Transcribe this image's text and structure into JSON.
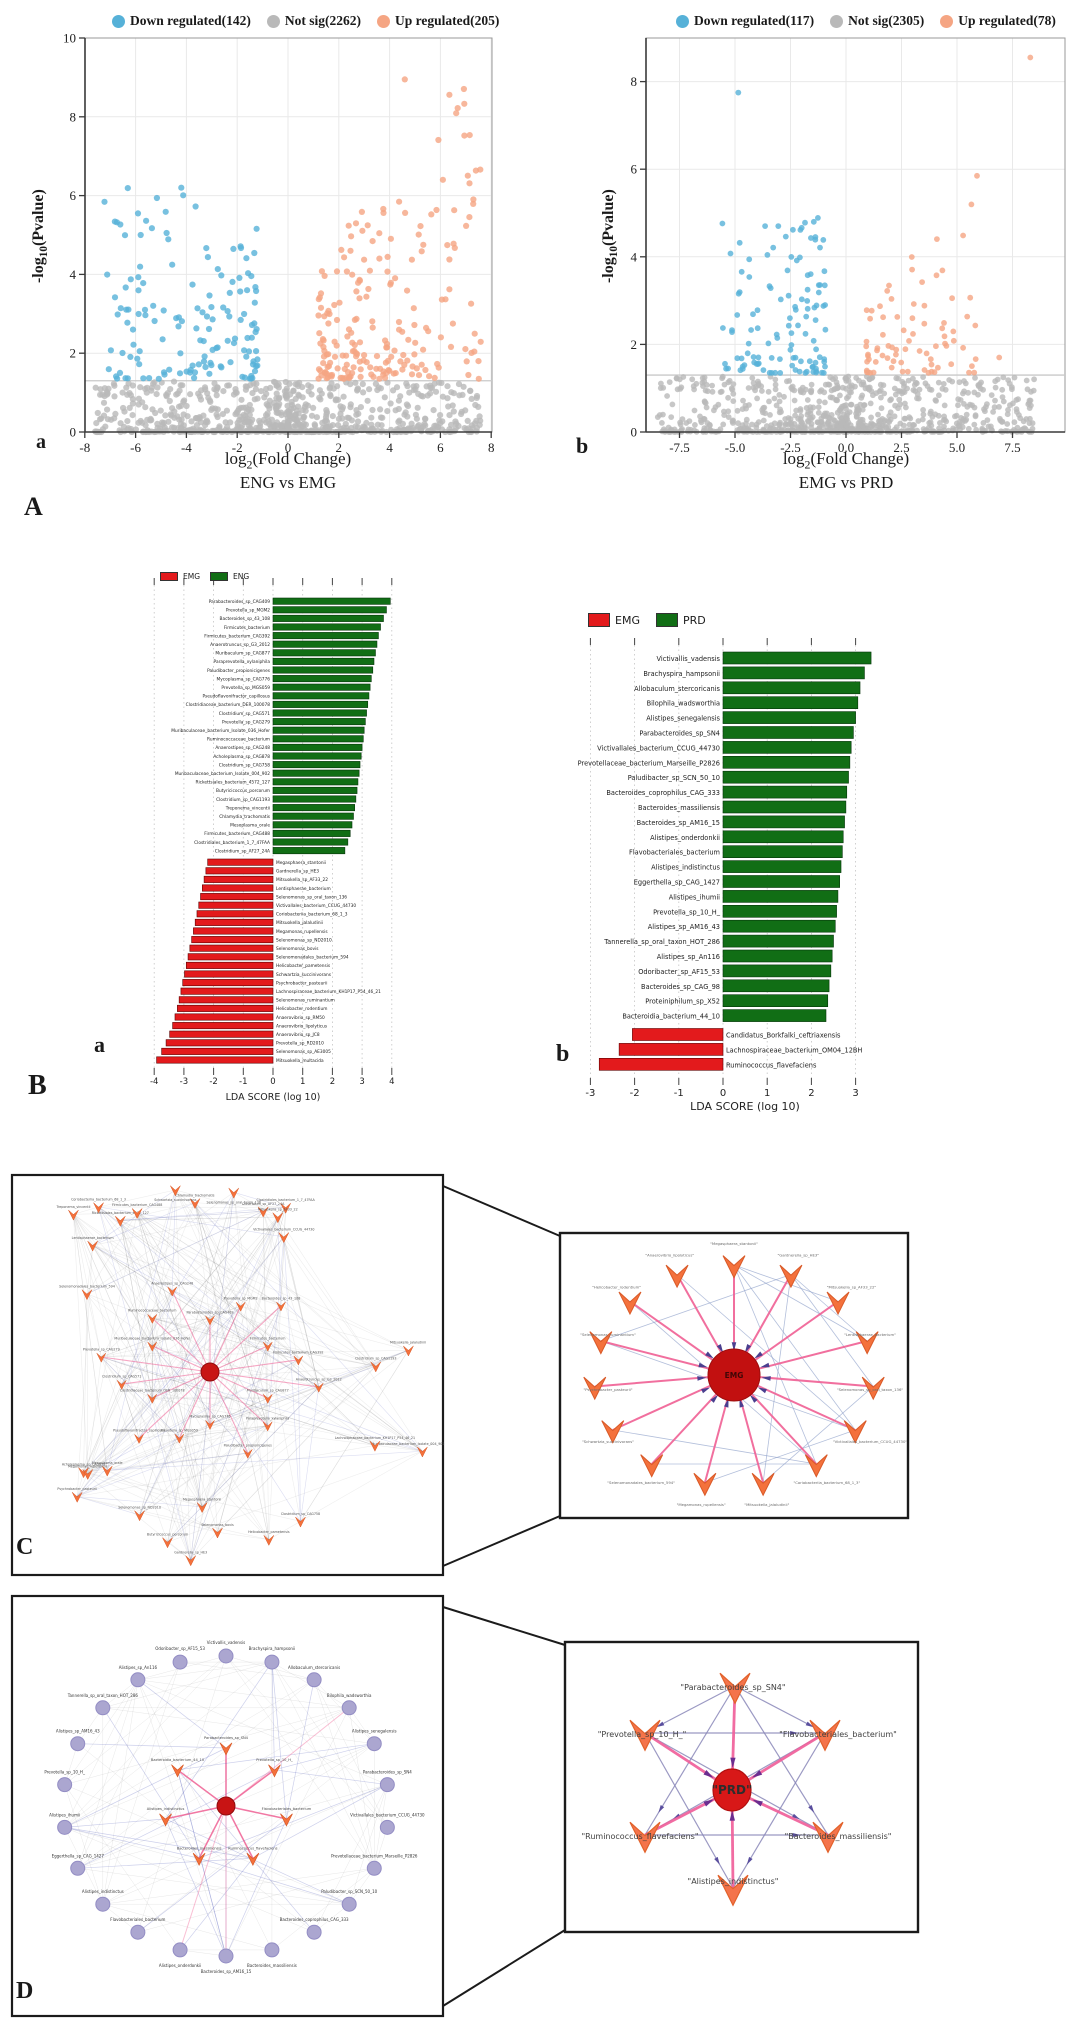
{
  "letters": {
    "A": "A",
    "a1": "a",
    "b1": "b",
    "B": "B",
    "a2": "a",
    "b2": "b",
    "C": "C",
    "D": "D"
  },
  "axis_text": {
    "y_pre": "-log",
    "y_sub": "10",
    "y_post": "(Pvalue)",
    "x_pre": "log",
    "x_sub": "2",
    "x_post": "(Fold Change)"
  },
  "panels": {
    "volcano_a": {
      "caption": "ENG vs EMG"
    },
    "volcano_b": {
      "caption": "EMG vs PRD"
    },
    "lefse_a": {
      "legend": [
        {
          "label": "EMG",
          "color": "#e31a1c"
        },
        {
          "label": "ENG",
          "color": "#116e15"
        }
      ]
    },
    "lefse_b": {
      "legend": [
        {
          "label": "EMG",
          "color": "#e31a1c"
        },
        {
          "label": "PRD",
          "color": "#116e15"
        }
      ]
    },
    "C_inset": {
      "center_label": "EMG",
      "node_labels": [
        "\"Megasphaera_stantonii\"",
        "\"Gardnerella_sp_HE3\"",
        "\"Mitsuokella_sp_AF33_22\"",
        "\"Lentisphaerae_bacterium\"",
        "\"Selenomonas_sp_oral_taxon_136\"",
        "\"Victivallales_bacterium_CCUG_44730\"",
        "\"Coriobacteriia_bacterium_68_1_3\"",
        "\"Mitsuokella_jalaludinii\"",
        "\"Megamonas_rupellensis\"",
        "\"Selenomonadales_bacterium_594\"",
        "\"Schwartzia_succinivorans\"",
        "\"Psychrobacter_pasteurii\"",
        "\"Selenomonas_ruminantium\"",
        "\"Helicobacter_rodentium\"",
        "\"Anaerovibrio_lipolyticus\""
      ]
    },
    "D_inset": {
      "center_label": "\"PRD\"",
      "node_labels": [
        "\"Parabacteroides_sp_SN4\"",
        "\"Prevotella_sp_10_H_\"",
        "\"Flavobacteriales_bacterium\"",
        "\"Ruminococcus_flavefaciens\"",
        "\"Bacteroides_massiliensis\"",
        "\"Alistipes_indistinctus\""
      ]
    }
  },
  "chart_data": [
    {
      "id": "volcano_a",
      "type": "scatter",
      "title": "ENG vs EMG",
      "xlabel": "log2(Fold Change)",
      "ylabel": "-log10(Pvalue)",
      "xlim": [
        -8.6,
        8.6
      ],
      "ylim": [
        0,
        10
      ],
      "xtick_vals": [
        -8,
        -6,
        -4,
        -2,
        0,
        2,
        4,
        6,
        8
      ],
      "xtick_labels": [
        "-8",
        "-6",
        "-4",
        "-2",
        "0",
        "2",
        "4",
        "6",
        "8"
      ],
      "ytick_vals": [
        0,
        2,
        4,
        6,
        8,
        10
      ],
      "ytick_labels": [
        "0",
        "2",
        "4",
        "6",
        "8",
        "10"
      ],
      "sig_line_y": 1.3,
      "grid": true,
      "legend_position": "top",
      "series": [
        {
          "name": "Down regulated(142)",
          "color": "#56b1d8",
          "count": 142,
          "x_range": [
            -7.3,
            -1.2
          ],
          "y_range": [
            1.35,
            6.3
          ],
          "outliers": [
            [
              -4.2,
              6.2
            ],
            [
              -5.8,
              5.0
            ]
          ]
        },
        {
          "name": "Not sig(2262)",
          "color": "#b9b9b9",
          "count": 2262,
          "x_range": [
            -7.6,
            7.6
          ],
          "y_range": [
            0,
            1.28
          ],
          "outliers": []
        },
        {
          "name": "Up regulated(205)",
          "color": "#f5a583",
          "count": 205,
          "x_range": [
            1.2,
            7.6
          ],
          "y_range": [
            1.35,
            9.0
          ],
          "outliers": [
            [
              4.6,
              8.95
            ],
            [
              6.1,
              6.4
            ],
            [
              7.3,
              5.9
            ],
            [
              7.5,
              1.8
            ]
          ]
        }
      ]
    },
    {
      "id": "volcano_b",
      "type": "scatter",
      "title": "EMG vs PRD",
      "xlabel": "log2(Fold Change)",
      "ylabel": "-log10(Pvalue)",
      "xlim": [
        -9.0,
        9.8
      ],
      "ylim": [
        0,
        9.0
      ],
      "xtick_vals": [
        -7.5,
        -5.0,
        -2.5,
        0.0,
        2.5,
        5.0,
        7.5
      ],
      "xtick_labels": [
        "-7.5",
        "-5.0",
        "-2.5",
        "0.0",
        "2.5",
        "5.0",
        "7.5"
      ],
      "ytick_vals": [
        0,
        2,
        4,
        6,
        8
      ],
      "ytick_labels": [
        "0",
        "2",
        "4",
        "6",
        "8"
      ],
      "sig_line_y": 1.3,
      "grid": true,
      "legend_position": "top",
      "series": [
        {
          "name": "Down regulated(117)",
          "color": "#56b1d8",
          "count": 117,
          "x_range": [
            -5.6,
            -0.9
          ],
          "y_range": [
            1.35,
            4.9
          ],
          "outliers": [
            [
              -4.85,
              7.75
            ],
            [
              -3.05,
              4.7
            ]
          ]
        },
        {
          "name": "Not sig(2305)",
          "color": "#b9b9b9",
          "count": 2305,
          "x_range": [
            -8.5,
            8.5
          ],
          "y_range": [
            0,
            1.27
          ],
          "outliers": []
        },
        {
          "name": "Up regulated(78)",
          "color": "#f5a583",
          "count": 78,
          "x_range": [
            0.9,
            5.9
          ],
          "y_range": [
            1.35,
            5.9
          ],
          "outliers": [
            [
              8.3,
              8.55
            ],
            [
              5.9,
              5.85
            ],
            [
              6.9,
              1.7
            ]
          ]
        }
      ]
    },
    {
      "id": "lefse_ENG_vs_EMG",
      "type": "bar",
      "xlabel": "LDA SCORE (log 10)",
      "xtick_vals": [
        -4,
        -3,
        -2,
        -1,
        0,
        1,
        2,
        3,
        4
      ],
      "xlim": [
        -4,
        4
      ],
      "grid": "dotted",
      "legend_position": "top",
      "series": [
        {
          "name": "ENG",
          "color": "#116e15",
          "items": [
            {
              "label": "Parabacteroides_sp_CAG409",
              "value": 3.95
            },
            {
              "label": "Prevotella_sp_MGM2",
              "value": 3.82
            },
            {
              "label": "Bacteroides_sp_43_108",
              "value": 3.72
            },
            {
              "label": "Firmicutes_bacterium",
              "value": 3.62
            },
            {
              "label": "Firmicutes_bacterium_CAG392",
              "value": 3.55
            },
            {
              "label": "Anaerotruncus_sp_G3_2012",
              "value": 3.5
            },
            {
              "label": "Muribaculum_sp_CAG877",
              "value": 3.45
            },
            {
              "label": "Paraprevotella_xylaniphila",
              "value": 3.4
            },
            {
              "label": "Paludibacter_propionicigenes",
              "value": 3.36
            },
            {
              "label": "Mycoplasma_sp_CAG776",
              "value": 3.31
            },
            {
              "label": "Prevotella_sp_MGS059",
              "value": 3.27
            },
            {
              "label": "Pseudoflavonifractor_capillosus",
              "value": 3.23
            },
            {
              "label": "Clostridiaceae_bacterium_DER_100078",
              "value": 3.19
            },
            {
              "label": "Clostridium_sp_CAG571",
              "value": 3.15
            },
            {
              "label": "Prevotella_sp_CAG279",
              "value": 3.11
            },
            {
              "label": "Muribaculaceae_bacterium_Isolate_036_Hofer",
              "value": 3.07
            },
            {
              "label": "Ruminococcaceae_bacterium",
              "value": 3.04
            },
            {
              "label": "Anaerostipes_sp_CAG248",
              "value": 3.0
            },
            {
              "label": "Acholeplasma_sp_CAG878",
              "value": 2.97
            },
            {
              "label": "Clostridium_sp_CAG758",
              "value": 2.93
            },
            {
              "label": "Muribaculaceae_bacterium_Isolate_004_902",
              "value": 2.9
            },
            {
              "label": "Rickettsiales_bacterium_4572_127",
              "value": 2.86
            },
            {
              "label": "Butyricicoccus_porcorum",
              "value": 2.83
            },
            {
              "label": "Clostridium_sp_CAG1193",
              "value": 2.79
            },
            {
              "label": "Treponema_vincentii",
              "value": 2.75
            },
            {
              "label": "Chlamydia_trachomatis",
              "value": 2.71
            },
            {
              "label": "Mesoplasma_orale",
              "value": 2.66
            },
            {
              "label": "Firmicutes_bacterium_CAG488",
              "value": 2.6
            },
            {
              "label": "Clostridiales_bacterium_1_7_47FAA",
              "value": 2.52
            },
            {
              "label": "Clostridium_sp_AF27_24A",
              "value": 2.42
            }
          ]
        },
        {
          "name": "EMG",
          "color": "#e31a1c",
          "items": [
            {
              "label": "Megasphaera_stantonii",
              "value": -2.2
            },
            {
              "label": "Gardnerella_sp_HE3",
              "value": -2.26
            },
            {
              "label": "Mitsuokella_sp_AF33_22",
              "value": -2.32
            },
            {
              "label": "Lentisphaerae_bacterium",
              "value": -2.38
            },
            {
              "label": "Selenomonas_sp_oral_taxon_136",
              "value": -2.44
            },
            {
              "label": "Victivallales_bacterium_CCUG_44730",
              "value": -2.5
            },
            {
              "label": "Coriobacteriia_bacterium_68_1_3",
              "value": -2.56
            },
            {
              "label": "Mitsuokella_jalaludinii",
              "value": -2.62
            },
            {
              "label": "Megamonas_rupellensis",
              "value": -2.68
            },
            {
              "label": "Selenomonas_sp_ND2010",
              "value": -2.74
            },
            {
              "label": "Selenomonas_bovis",
              "value": -2.8
            },
            {
              "label": "Selenomonadales_bacterium_594",
              "value": -2.86
            },
            {
              "label": "Helicobacter_pametensis",
              "value": -2.92
            },
            {
              "label": "Schwartzia_succinivorans",
              "value": -2.98
            },
            {
              "label": "Psychrobacter_pasteurii",
              "value": -3.04
            },
            {
              "label": "Lachnospiraceae_bacterium_KH1P17_P54_46_21",
              "value": -3.1
            },
            {
              "label": "Selenomonas_ruminantium",
              "value": -3.16
            },
            {
              "label": "Helicobacter_rodentium",
              "value": -3.22
            },
            {
              "label": "Anaerovibrio_sp_RM50",
              "value": -3.3
            },
            {
              "label": "Anaerovibrio_lipolyticus",
              "value": -3.38
            },
            {
              "label": "Anaerovibrio_sp_JC8",
              "value": -3.48
            },
            {
              "label": "Prevotella_sp_RD2010",
              "value": -3.6
            },
            {
              "label": "Selenomonas_sp_AE3005",
              "value": -3.75
            },
            {
              "label": "Mitsuokella_multacida",
              "value": -3.92
            }
          ]
        }
      ]
    },
    {
      "id": "lefse_EMG_vs_PRD",
      "type": "bar",
      "xlabel": "LDA SCORE (log 10)",
      "xtick_vals": [
        -3,
        -2,
        -1,
        0,
        1,
        2,
        3
      ],
      "xlim": [
        -3,
        3
      ],
      "grid": "dotted",
      "legend_position": "top",
      "series": [
        {
          "name": "PRD",
          "color": "#116e15",
          "items": [
            {
              "label": "Victivallis_vadensis",
              "value": 3.35
            },
            {
              "label": "Brachyspira_hampsonii",
              "value": 3.2
            },
            {
              "label": "Allobaculum_stercoricanis",
              "value": 3.1
            },
            {
              "label": "Bilophila_wadsworthia",
              "value": 3.05
            },
            {
              "label": "Alistipes_senegalensis",
              "value": 3.0
            },
            {
              "label": "Parabacteroides_sp_SN4",
              "value": 2.95
            },
            {
              "label": "Victivallales_bacterium_CCUG_44730",
              "value": 2.9
            },
            {
              "label": "Prevotellaceae_bacterium_Marseille_P2826",
              "value": 2.87
            },
            {
              "label": "Paludibacter_sp_SCN_50_10",
              "value": 2.84
            },
            {
              "label": "Bacteroides_coprophilus_CAG_333",
              "value": 2.8
            },
            {
              "label": "Bacteroides_massiliensis",
              "value": 2.78
            },
            {
              "label": "Bacteroides_sp_AM16_15",
              "value": 2.75
            },
            {
              "label": "Alistipes_onderdonkii",
              "value": 2.72
            },
            {
              "label": "Flavobacteriales_bacterium",
              "value": 2.7
            },
            {
              "label": "Alistipes_indistinctus",
              "value": 2.67
            },
            {
              "label": "Eggerthella_sp_CAG_1427",
              "value": 2.64
            },
            {
              "label": "Alistipes_ihumii",
              "value": 2.6
            },
            {
              "label": "Prevotella_sp_10_H_",
              "value": 2.57
            },
            {
              "label": "Alistipes_sp_AM16_43",
              "value": 2.54
            },
            {
              "label": "Tannerella_sp_oral_taxon_HOT_286",
              "value": 2.5
            },
            {
              "label": "Alistipes_sp_An116",
              "value": 2.47
            },
            {
              "label": "Odoribacter_sp_AF15_53",
              "value": 2.44
            },
            {
              "label": "Bacteroides_sp_CAG_98",
              "value": 2.4
            },
            {
              "label": "Proteiniphilum_sp_X52",
              "value": 2.37
            },
            {
              "label": "Bacteroidia_bacterium_44_10",
              "value": 2.33
            }
          ]
        },
        {
          "name": "EMG",
          "color": "#e31a1c",
          "items": [
            {
              "label": "Candidatus_Borkfalki_ceftriaxensis",
              "value": -2.05
            },
            {
              "label": "Lachnospiraceae_bacterium_OM04_12BH",
              "value": -2.35
            },
            {
              "label": "Ruminococcus_flavefaciens",
              "value": -2.8
            }
          ]
        }
      ]
    }
  ]
}
